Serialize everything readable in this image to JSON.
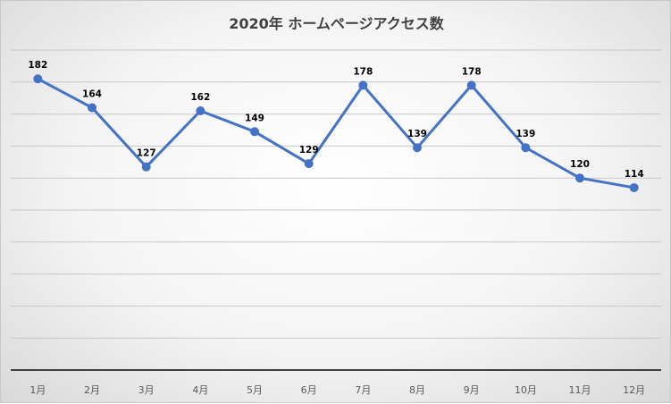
{
  "chart_data": {
    "type": "line",
    "title": "2020年 ホームページアクセス数",
    "categories": [
      "1月",
      "2月",
      "3月",
      "4月",
      "5月",
      "6月",
      "7月",
      "8月",
      "9月",
      "10月",
      "11月",
      "12月"
    ],
    "series": [
      {
        "values": [
          182,
          164,
          127,
          162,
          149,
          129,
          178,
          139,
          178,
          139,
          120,
          114
        ]
      }
    ],
    "xlabel": "",
    "ylabel": "",
    "ylim": [
      0,
      200
    ],
    "grid": true,
    "legend": "none",
    "data_labels": true,
    "colors": {
      "series": "#4472c4",
      "grid": "#c7c7c7",
      "axis": "#404040"
    }
  }
}
